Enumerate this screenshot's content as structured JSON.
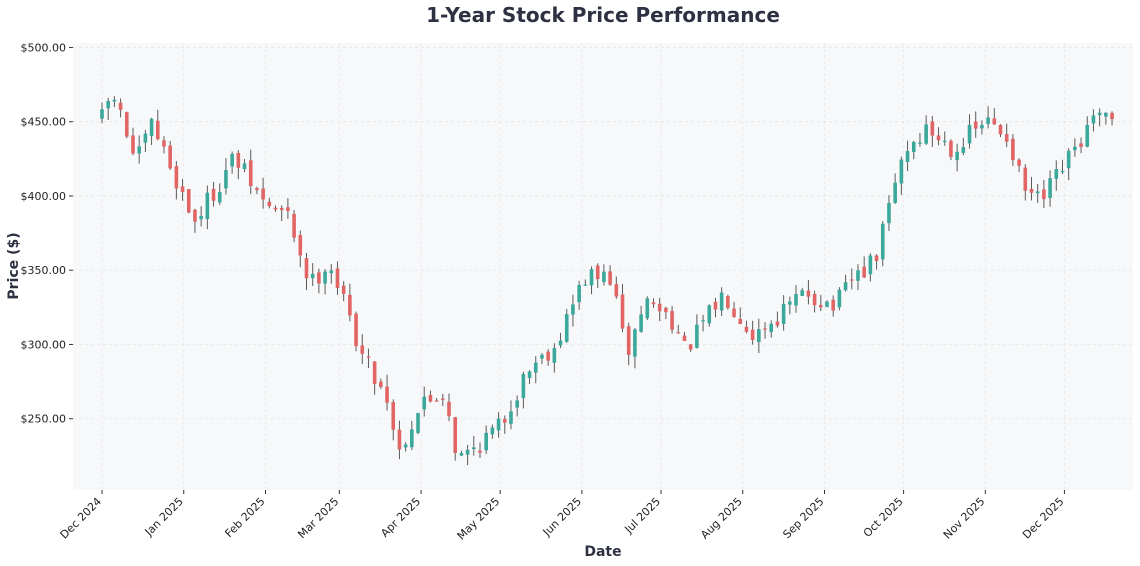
{
  "chart_data": {
    "type": "candlestick",
    "title": "1-Year Stock Price Performance",
    "xlabel": "Date",
    "ylabel": "Price ($)",
    "ylim": [
      202,
      503
    ],
    "x_range": [
      "2024-11-20",
      "2025-12-27"
    ],
    "grid": true,
    "legend": "none",
    "colors": {
      "up": "#3aa89a",
      "down": "#e26565",
      "wick": "#5a5a5a",
      "plot_bg": "#f7f8fa"
    },
    "y_ticks": [
      {
        "value": 250,
        "label": "$250.00"
      },
      {
        "value": 300,
        "label": "$300.00"
      },
      {
        "value": 350,
        "label": "$350.00"
      },
      {
        "value": 400,
        "label": "$400.00"
      },
      {
        "value": 450,
        "label": "$450.00"
      },
      {
        "value": 500,
        "label": "$500.00"
      }
    ],
    "x_ticks": [
      {
        "date": "2024-12-01",
        "label": "Dec 2024"
      },
      {
        "date": "2025-01-01",
        "label": "Jan 2025"
      },
      {
        "date": "2025-02-01",
        "label": "Feb 2025"
      },
      {
        "date": "2025-03-01",
        "label": "Mar 2025"
      },
      {
        "date": "2025-04-01",
        "label": "Apr 2025"
      },
      {
        "date": "2025-05-01",
        "label": "May 2025"
      },
      {
        "date": "2025-06-01",
        "label": "Jun 2025"
      },
      {
        "date": "2025-07-01",
        "label": "Jul 2025"
      },
      {
        "date": "2025-08-01",
        "label": "Aug 2025"
      },
      {
        "date": "2025-09-01",
        "label": "Sep 2025"
      },
      {
        "date": "2025-10-01",
        "label": "Oct 2025"
      },
      {
        "date": "2025-11-01",
        "label": "Nov 2025"
      },
      {
        "date": "2025-12-01",
        "label": "Dec 2025"
      }
    ],
    "trend_keypoints": [
      [
        "2024-12-01",
        452
      ],
      [
        "2024-12-05",
        470
      ],
      [
        "2024-12-14",
        422
      ],
      [
        "2024-12-20",
        448
      ],
      [
        "2025-01-05",
        383
      ],
      [
        "2025-01-15",
        410
      ],
      [
        "2025-01-20",
        426
      ],
      [
        "2025-01-31",
        396
      ],
      [
        "2025-02-10",
        385
      ],
      [
        "2025-02-18",
        340
      ],
      [
        "2025-02-25",
        357
      ],
      [
        "2025-03-10",
        292
      ],
      [
        "2025-03-20",
        262
      ],
      [
        "2025-03-23",
        226
      ],
      [
        "2025-04-01",
        260
      ],
      [
        "2025-04-10",
        268
      ],
      [
        "2025-04-15",
        222
      ],
      [
        "2025-05-01",
        245
      ],
      [
        "2025-05-12",
        285
      ],
      [
        "2025-05-22",
        300
      ],
      [
        "2025-06-02",
        345
      ],
      [
        "2025-06-12",
        345
      ],
      [
        "2025-06-18",
        292
      ],
      [
        "2025-06-25",
        330
      ],
      [
        "2025-07-05",
        318
      ],
      [
        "2025-07-10",
        295
      ],
      [
        "2025-07-25",
        335
      ],
      [
        "2025-08-05",
        307
      ],
      [
        "2025-08-15",
        320
      ],
      [
        "2025-08-25",
        335
      ],
      [
        "2025-09-05",
        325
      ],
      [
        "2025-09-12",
        345
      ],
      [
        "2025-09-20",
        355
      ],
      [
        "2025-10-01",
        430
      ],
      [
        "2025-10-10",
        445
      ],
      [
        "2025-10-20",
        432
      ],
      [
        "2025-11-01",
        450
      ],
      [
        "2025-11-10",
        440
      ],
      [
        "2025-11-15",
        405
      ],
      [
        "2025-11-22",
        395
      ],
      [
        "2025-12-01",
        420
      ],
      [
        "2025-12-12",
        450
      ],
      [
        "2025-12-20",
        450
      ]
    ],
    "candle_interval_days": 2.35,
    "candle_range": [
      "2024-12-01",
      "2025-12-20"
    ],
    "volatility": 9
  }
}
